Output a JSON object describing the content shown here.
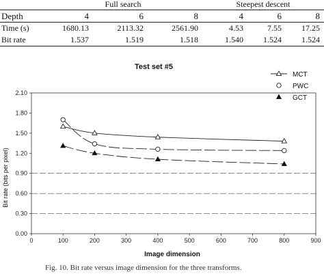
{
  "table": {
    "groups": [
      "Full search",
      "Steepest descent"
    ],
    "header_label": "Depth",
    "depths": [
      "4",
      "6",
      "8",
      "4",
      "6",
      "8"
    ],
    "rows": [
      {
        "label": "Time (s)",
        "values": [
          "1680.13",
          "2113.32",
          "2561.90",
          "4.53",
          "7.55",
          "17.25"
        ]
      },
      {
        "label": "Bit rate",
        "values": [
          "1.537",
          "1.519",
          "1.518",
          "1.540",
          "1.524",
          "1.524"
        ]
      }
    ]
  },
  "chart_data": {
    "type": "line",
    "title": "Test set #5",
    "xlabel": "Image dimension",
    "ylabel": "Bit rate (bits per pixel)",
    "xlim": [
      0,
      900
    ],
    "ylim": [
      0,
      2.1
    ],
    "xticks": [
      "0",
      "100",
      "200",
      "300",
      "400",
      "500",
      "600",
      "700",
      "800",
      "900"
    ],
    "yticks": [
      "0.00",
      "0.30",
      "0.60",
      "0.90",
      "1.20",
      "1.50",
      "1.80",
      "2.10"
    ],
    "grid": "horizontal",
    "legend_position": "top-right",
    "x": [
      100,
      200,
      400,
      800
    ],
    "series": [
      {
        "name": "MCT",
        "marker": "open-triangle",
        "dash": "solid",
        "values": [
          1.6,
          1.5,
          1.44,
          1.38
        ]
      },
      {
        "name": "PWC",
        "marker": "open-circle",
        "dash": "dashed",
        "values": [
          1.7,
          1.34,
          1.26,
          1.24
        ]
      },
      {
        "name": "GCT",
        "marker": "filled-triangle",
        "dash": "dashed",
        "values": [
          1.31,
          1.2,
          1.11,
          1.04
        ]
      }
    ]
  },
  "caption": "Fig. 10.   Bit rate versus image dimension for the three transforms."
}
